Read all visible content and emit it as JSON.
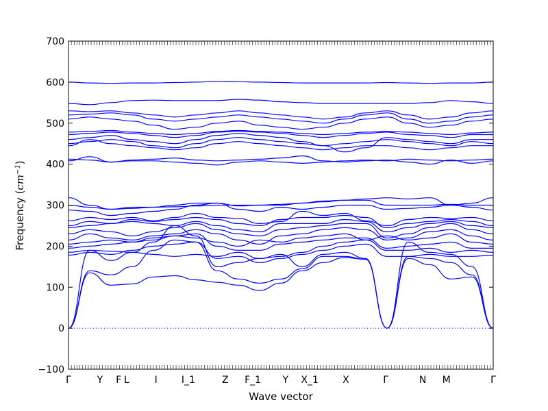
{
  "chart_data": {
    "type": "line",
    "xlabel": "Wave vector",
    "ylabel": "Frequency (cm^-1)",
    "ylabel_parts": {
      "prefix": "Frequency (",
      "unit_base": "cm",
      "unit_sup": "−1",
      "suffix": ")"
    },
    "ylim": [
      -100,
      700
    ],
    "y_ticks": [
      -100,
      0,
      100,
      200,
      300,
      400,
      500,
      600,
      700
    ],
    "x_range": [
      0,
      1
    ],
    "zero_line": {
      "y": 0,
      "style": "dotted"
    },
    "high_symmetry_points": [
      {
        "label": "Γ",
        "x": 0.0
      },
      {
        "label": "Y",
        "x": 0.074
      },
      {
        "label": "F",
        "x": 0.118
      },
      {
        "label": "L",
        "x": 0.137
      },
      {
        "label": "I",
        "x": 0.206
      },
      {
        "label": "I_1",
        "x": 0.282
      },
      {
        "label": "Z",
        "x": 0.369
      },
      {
        "label": "F_1",
        "x": 0.434
      },
      {
        "label": "Y",
        "x": 0.511
      },
      {
        "label": "X_1",
        "x": 0.568
      },
      {
        "label": "X",
        "x": 0.653
      },
      {
        "label": "Γ",
        "x": 0.747
      },
      {
        "label": "N",
        "x": 0.834
      },
      {
        "label": "M",
        "x": 0.89
      },
      {
        "label": "Γ",
        "x": 1.0
      }
    ],
    "series": [
      {
        "values": [
          0,
          135,
          105,
          108,
          125,
          128,
          118,
          112,
          105,
          92,
          110,
          140,
          160,
          172,
          168,
          0,
          170,
          155,
          120,
          125,
          0
        ]
      },
      {
        "values": [
          0,
          140,
          130,
          150,
          190,
          215,
          210,
          140,
          120,
          110,
          120,
          145,
          175,
          175,
          168,
          0,
          175,
          170,
          160,
          130,
          0
        ]
      },
      {
        "values": [
          0,
          190,
          165,
          185,
          210,
          250,
          225,
          150,
          160,
          170,
          180,
          150,
          180,
          185,
          170,
          0,
          210,
          185,
          180,
          150,
          0
        ]
      },
      {
        "values": [
          178,
          185,
          180,
          190,
          200,
          205,
          210,
          170,
          175,
          160,
          170,
          180,
          190,
          200,
          205,
          175,
          175,
          180,
          175,
          175,
          178
        ]
      },
      {
        "values": [
          185,
          190,
          188,
          185,
          180,
          175,
          180,
          175,
          185,
          170,
          175,
          185,
          200,
          210,
          215,
          190,
          190,
          195,
          185,
          190,
          185
        ]
      },
      {
        "values": [
          195,
          200,
          205,
          210,
          220,
          225,
          230,
          200,
          190,
          190,
          205,
          210,
          215,
          220,
          220,
          195,
          200,
          205,
          210,
          195,
          195
        ]
      },
      {
        "values": [
          205,
          210,
          215,
          210,
          215,
          225,
          220,
          210,
          200,
          215,
          210,
          220,
          225,
          230,
          215,
          225,
          215,
          220,
          230,
          210,
          205
        ]
      },
      {
        "values": [
          215,
          230,
          220,
          215,
          225,
          230,
          240,
          230,
          215,
          205,
          225,
          230,
          240,
          245,
          240,
          215,
          220,
          235,
          240,
          225,
          215
        ]
      },
      {
        "values": [
          230,
          240,
          235,
          225,
          235,
          245,
          255,
          240,
          230,
          225,
          240,
          245,
          250,
          255,
          255,
          220,
          230,
          245,
          255,
          240,
          230
        ]
      },
      {
        "values": [
          245,
          250,
          255,
          260,
          255,
          250,
          260,
          250,
          240,
          235,
          255,
          255,
          255,
          265,
          260,
          235,
          245,
          255,
          260,
          250,
          245
        ]
      },
      {
        "values": [
          250,
          260,
          255,
          265,
          260,
          265,
          270,
          265,
          255,
          250,
          265,
          270,
          270,
          275,
          270,
          245,
          255,
          260,
          265,
          260,
          250
        ]
      },
      {
        "values": [
          262,
          270,
          265,
          270,
          262,
          270,
          280,
          270,
          268,
          255,
          260,
          285,
          275,
          280,
          262,
          250,
          265,
          270,
          268,
          270,
          262
        ]
      },
      {
        "values": [
          288,
          285,
          275,
          280,
          285,
          290,
          300,
          305,
          290,
          285,
          295,
          290,
          295,
          300,
          300,
          290,
          292,
          295,
          300,
          295,
          288
        ]
      },
      {
        "values": [
          300,
          295,
          290,
          295,
          295,
          300,
          305,
          305,
          298,
          300,
          300,
          305,
          310,
          312,
          312,
          300,
          300,
          300,
          302,
          300,
          300
        ]
      },
      {
        "values": [
          318,
          300,
          290,
          292,
          295,
          296,
          298,
          300,
          300,
          300,
          302,
          305,
          308,
          312,
          315,
          318,
          315,
          318,
          300,
          305,
          318
        ]
      },
      {
        "values": [
          408,
          418,
          405,
          410,
          412,
          415,
          410,
          408,
          410,
          412,
          415,
          420,
          408,
          405,
          408,
          410,
          405,
          400,
          410,
          402,
          408
        ]
      },
      {
        "values": [
          412,
          410,
          405,
          408,
          408,
          405,
          402,
          398,
          405,
          408,
          405,
          402,
          405,
          408,
          410,
          408,
          412,
          410,
          408,
          410,
          412
        ]
      },
      {
        "values": [
          445,
          460,
          450,
          445,
          440,
          435,
          440,
          450,
          455,
          450,
          445,
          440,
          435,
          440,
          445,
          445,
          440,
          435,
          440,
          445,
          445
        ]
      },
      {
        "values": [
          450,
          455,
          460,
          455,
          445,
          440,
          450,
          460,
          465,
          460,
          455,
          450,
          445,
          450,
          455,
          460,
          455,
          450,
          445,
          455,
          450
        ]
      },
      {
        "values": [
          460,
          465,
          470,
          460,
          455,
          450,
          460,
          470,
          475,
          470,
          465,
          455,
          445,
          430,
          440,
          465,
          460,
          455,
          450,
          460,
          460
        ]
      },
      {
        "values": [
          472,
          475,
          478,
          475,
          470,
          465,
          470,
          478,
          480,
          478,
          475,
          470,
          465,
          470,
          475,
          478,
          472,
          470,
          465,
          472,
          472
        ]
      },
      {
        "values": [
          478,
          480,
          482,
          478,
          475,
          472,
          475,
          480,
          482,
          480,
          478,
          475,
          472,
          475,
          478,
          480,
          478,
          475,
          472,
          476,
          478
        ]
      },
      {
        "values": [
          510,
          515,
          510,
          505,
          495,
          485,
          490,
          500,
          505,
          495,
          490,
          485,
          490,
          500,
          510,
          515,
          500,
          490,
          495,
          505,
          510
        ]
      },
      {
        "values": [
          520,
          522,
          525,
          520,
          510,
          505,
          510,
          515,
          520,
          515,
          510,
          505,
          500,
          510,
          520,
          525,
          510,
          500,
          505,
          515,
          520
        ]
      },
      {
        "values": [
          530,
          528,
          530,
          525,
          520,
          515,
          520,
          525,
          530,
          525,
          520,
          515,
          510,
          515,
          525,
          530,
          520,
          510,
          515,
          525,
          530
        ]
      },
      {
        "values": [
          548,
          545,
          550,
          555,
          556,
          555,
          555,
          555,
          558,
          556,
          552,
          550,
          548,
          548,
          548,
          548,
          548,
          550,
          555,
          552,
          548
        ]
      },
      {
        "values": [
          600,
          598,
          597,
          598,
          598,
          599,
          600,
          602,
          601,
          600,
          599,
          598,
          598,
          598,
          598,
          599,
          598,
          597,
          598,
          598,
          600
        ]
      }
    ]
  }
}
